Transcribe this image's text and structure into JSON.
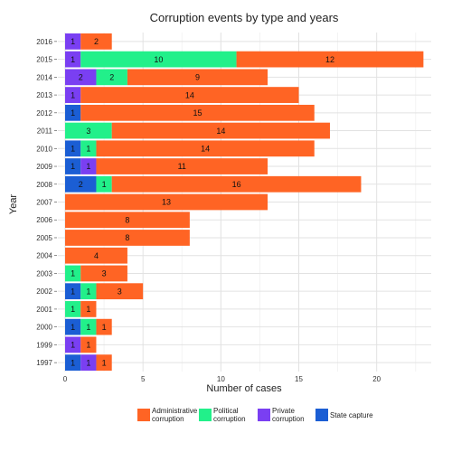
{
  "chart_data": {
    "type": "bar",
    "orientation": "horizontal",
    "stacked": true,
    "title": "Corruption events by type and years",
    "xlabel": "Number of cases",
    "ylabel": "Year",
    "xlim": [
      0,
      23.5
    ],
    "xticks": [
      0,
      5,
      10,
      15,
      20
    ],
    "grid": true,
    "legend_position": "bottom",
    "categories": [
      "2016",
      "2015",
      "2014",
      "2013",
      "2012",
      "2011",
      "2010",
      "2009",
      "2008",
      "2007",
      "2006",
      "2005",
      "2004",
      "2003",
      "2002",
      "2001",
      "2000",
      "1999",
      "1997"
    ],
    "series": [
      {
        "name": "State capture",
        "color": "#1b5ed4",
        "values": [
          0,
          0,
          0,
          0,
          1,
          0,
          1,
          1,
          2,
          0,
          0,
          0,
          0,
          0,
          1,
          0,
          1,
          0,
          1
        ]
      },
      {
        "name": "Private corruption",
        "color": "#7a3ff2",
        "values": [
          1,
          1,
          2,
          1,
          0,
          0,
          0,
          1,
          0,
          0,
          0,
          0,
          0,
          0,
          0,
          0,
          0,
          1,
          1
        ]
      },
      {
        "name": "Political corruption",
        "color": "#22f08a",
        "values": [
          0,
          10,
          2,
          0,
          0,
          3,
          1,
          0,
          1,
          0,
          0,
          0,
          0,
          1,
          1,
          1,
          1,
          0,
          0
        ]
      },
      {
        "name": "Administrative corruption",
        "color": "#ff6424",
        "values": [
          2,
          12,
          9,
          14,
          15,
          14,
          14,
          11,
          16,
          13,
          8,
          8,
          4,
          3,
          3,
          1,
          1,
          1,
          1
        ]
      }
    ],
    "legend": [
      {
        "lines": [
          "Administrative",
          "corruption"
        ],
        "color": "#ff6424"
      },
      {
        "lines": [
          "Political",
          "corruption"
        ],
        "color": "#22f08a"
      },
      {
        "lines": [
          "Private",
          "corruption"
        ],
        "color": "#7a3ff2"
      },
      {
        "lines": [
          "State capture"
        ],
        "color": "#1b5ed4"
      }
    ]
  }
}
